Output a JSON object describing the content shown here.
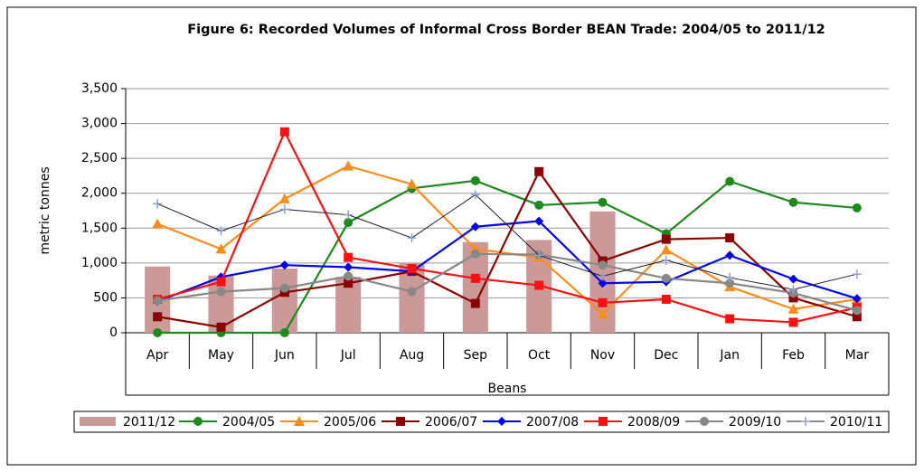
{
  "chart_data": {
    "type": "bar-line",
    "title": "Figure 6: Recorded Volumes of  Informal Cross Border BEAN Trade: 2004/05 to 2011/12",
    "y_axis_label": "metric tonnes",
    "x_axis_label": "Beans",
    "categories": [
      "Apr",
      "May",
      "Jun",
      "Jul",
      "Aug",
      "Sep",
      "Oct",
      "Nov",
      "Dec",
      "Jan",
      "Feb",
      "Mar"
    ],
    "ylim": [
      0,
      3500
    ],
    "yticks": [
      0,
      500,
      {
        "value": 1000,
        "label": "1,000"
      },
      {
        "value": 1500,
        "label": "1,500"
      },
      {
        "value": 2000,
        "label": "2,000"
      },
      {
        "value": 2500,
        "label": "2,500"
      },
      {
        "value": 3000,
        "label": "3,000"
      },
      {
        "value": 3500,
        "label": "3,500"
      }
    ],
    "grid": true,
    "legend": "bottom",
    "series": [
      {
        "name": "2011/12",
        "kind": "bar",
        "color": "#cc9999",
        "values": [
          950,
          820,
          920,
          800,
          1000,
          1300,
          1330,
          1740,
          null,
          null,
          null,
          null
        ]
      },
      {
        "name": "2004/05",
        "kind": "line",
        "marker": "circle",
        "color": "#1e8a1e",
        "values": [
          0,
          0,
          0,
          1580,
          2070,
          2180,
          1830,
          1870,
          1420,
          2170,
          1870,
          1790
        ]
      },
      {
        "name": "2005/06",
        "kind": "line",
        "marker": "triangle",
        "color": "#ff8c1a",
        "values": [
          1560,
          1200,
          1920,
          2390,
          2130,
          1200,
          1080,
          270,
          1190,
          660,
          340,
          480
        ]
      },
      {
        "name": "2006/07",
        "kind": "line",
        "marker": "square",
        "color": "#8b0000",
        "values": [
          230,
          80,
          580,
          710,
          880,
          420,
          2310,
          1030,
          1340,
          1360,
          500,
          230
        ]
      },
      {
        "name": "2007/08",
        "kind": "line",
        "marker": "diamond",
        "color": "#0000ee",
        "values": [
          450,
          800,
          970,
          940,
          880,
          1520,
          1600,
          710,
          730,
          1110,
          770,
          490
        ]
      },
      {
        "name": "2008/09",
        "kind": "line",
        "marker": "square",
        "color": "#ff1010",
        "values": [
          480,
          730,
          2880,
          1080,
          920,
          780,
          680,
          430,
          480,
          200,
          150,
          360
        ]
      },
      {
        "name": "2009/10",
        "kind": "line",
        "marker": "circle",
        "color": "#888888",
        "values": [
          460,
          590,
          640,
          810,
          590,
          1130,
          1120,
          970,
          780,
          710,
          570,
          320
        ]
      },
      {
        "name": "2010/11",
        "kind": "line",
        "marker": "plus",
        "color": "#1a1a2e",
        "values": [
          1850,
          1460,
          1770,
          1690,
          1360,
          1980,
          1110,
          810,
          1040,
          790,
          620,
          840
        ]
      }
    ]
  }
}
